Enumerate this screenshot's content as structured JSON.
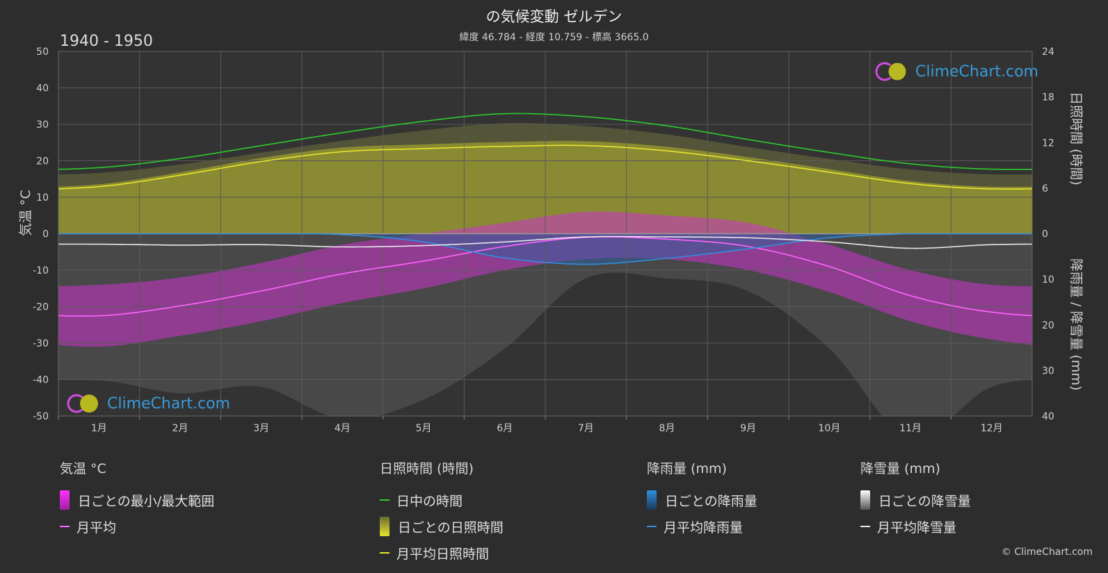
{
  "title": "の気候変動 ゼルデン",
  "subtitle": "緯度 46.784 - 経度 10.759 - 標高 3665.0",
  "period": "1940 - 1950",
  "axis_left_title": "気温 °C",
  "axis_right_top_title": "日照時間 (時間)",
  "axis_right_bottom_title": "降雨量 / 降雪量 (mm)",
  "logo_text": "ClimeChart.com",
  "copyright": "© ClimeChart.com",
  "colors": {
    "background": "#2d2d2d",
    "daylight": "#2ecc2e",
    "sunshine_line": "#e6e62e",
    "sunshine_fill": "#9c9c32",
    "temp_line": "#ff66ff",
    "temp_fill": "#cc33cc",
    "rain_line": "#2f8fe0",
    "snow_line": "#e8e8e8"
  },
  "legend": {
    "temperature": {
      "title": "気温 °C",
      "range": "日ごとの最小/最大範囲",
      "mean": "月平均"
    },
    "sunshine": {
      "title": "日照時間 (時間)",
      "daylight": "日中の時間",
      "daily": "日ごとの日照時間",
      "mean": "月平均日照時間"
    },
    "rain": {
      "title": "降雨量 (mm)",
      "daily": "日ごとの降雨量",
      "mean": "月平均降雨量"
    },
    "snow": {
      "title": "降雪量 (mm)",
      "daily": "日ごとの降雪量",
      "mean": "月平均降雪量"
    }
  },
  "chart_data": {
    "type": "line",
    "categories": [
      "1月",
      "2月",
      "3月",
      "4月",
      "5月",
      "6月",
      "7月",
      "8月",
      "9月",
      "10月",
      "11月",
      "12月"
    ],
    "axes": {
      "temperature_ylim": [
        -50,
        50
      ],
      "temperature_ticks": [
        50,
        40,
        30,
        20,
        10,
        0,
        -10,
        -20,
        -30,
        -40,
        -50
      ],
      "sunshine_ylim": [
        0,
        24
      ],
      "sunshine_ticks": [
        24,
        18,
        12,
        6,
        0
      ],
      "precip_ylim": [
        0,
        40
      ],
      "precip_ticks": [
        0,
        10,
        20,
        30,
        40
      ]
    },
    "series": [
      {
        "name": "日中の時間",
        "axis": "sunshine",
        "values": [
          8.7,
          9.9,
          11.6,
          13.3,
          14.8,
          15.8,
          15.4,
          14.2,
          12.4,
          10.7,
          9.2,
          8.5
        ]
      },
      {
        "name": "月平均日照時間",
        "axis": "sunshine",
        "values": [
          6.2,
          7.7,
          9.5,
          10.8,
          11.2,
          11.5,
          11.6,
          10.9,
          9.6,
          8.1,
          6.6,
          5.9
        ]
      },
      {
        "name": "月平均",
        "axis": "temperature",
        "values": [
          -22.5,
          -19.8,
          -15.7,
          -11.0,
          -7.5,
          -3.5,
          -1.0,
          -1.5,
          -3.5,
          -9.0,
          -17.0,
          -21.5
        ]
      },
      {
        "name": "月平均降雨量",
        "axis": "precip",
        "values": [
          0.0,
          0.0,
          0.0,
          0.2,
          1.8,
          5.3,
          6.7,
          5.4,
          3.3,
          0.9,
          0.0,
          0.0
        ]
      },
      {
        "name": "月平均降雪量",
        "axis": "precip",
        "values": [
          2.3,
          2.5,
          2.4,
          2.9,
          2.6,
          1.8,
          0.7,
          0.7,
          0.9,
          1.8,
          3.2,
          2.4
        ]
      }
    ],
    "temperature_daily_range": {
      "min": [
        -31,
        -28,
        -24,
        -19,
        -15,
        -10,
        -7,
        -7,
        -10,
        -16,
        -24,
        -29
      ],
      "max": [
        -14,
        -12,
        -8,
        -3,
        0,
        3,
        6,
        5,
        3,
        -3,
        -10,
        -14
      ]
    },
    "grid": true,
    "legend_position": "bottom"
  }
}
